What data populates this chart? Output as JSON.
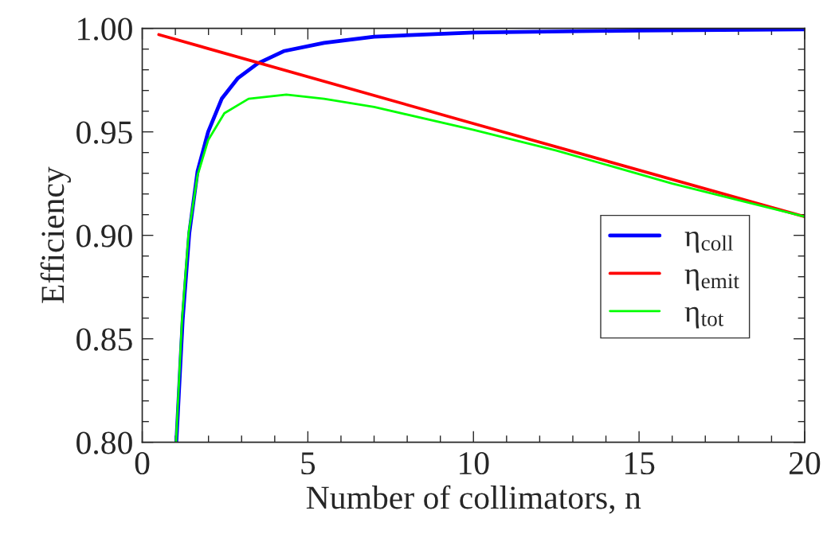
{
  "chart_data": {
    "type": "line",
    "xlabel": "Number of collimators, n",
    "ylabel": "Efficiency",
    "xlim": [
      0,
      20
    ],
    "ylim": [
      0.8,
      1.0
    ],
    "xticks": [
      0,
      {
        "value": 1,
        "label": null
      },
      {
        "value": 2,
        "label": null
      },
      {
        "value": 3,
        "label": null
      },
      {
        "value": 4,
        "label": null
      },
      5,
      {
        "value": 6,
        "label": null
      },
      {
        "value": 7,
        "label": null
      },
      {
        "value": 8,
        "label": null
      },
      {
        "value": 9,
        "label": null
      },
      10,
      {
        "value": 11,
        "label": null
      },
      {
        "value": 12,
        "label": null
      },
      {
        "value": 13,
        "label": null
      },
      {
        "value": 14,
        "label": null
      },
      15,
      {
        "value": 16,
        "label": null
      },
      {
        "value": 17,
        "label": null
      },
      {
        "value": 18,
        "label": null
      },
      {
        "value": 19,
        "label": null
      },
      20
    ],
    "yticks": [
      {
        "value": 0.8,
        "label": "0.80"
      },
      {
        "value": 0.81,
        "label": null
      },
      {
        "value": 0.82,
        "label": null
      },
      {
        "value": 0.83,
        "label": null
      },
      {
        "value": 0.84,
        "label": null
      },
      {
        "value": 0.85,
        "label": "0.85"
      },
      {
        "value": 0.86,
        "label": null
      },
      {
        "value": 0.87,
        "label": null
      },
      {
        "value": 0.88,
        "label": null
      },
      {
        "value": 0.89,
        "label": null
      },
      {
        "value": 0.9,
        "label": "0.90"
      },
      {
        "value": 0.91,
        "label": null
      },
      {
        "value": 0.92,
        "label": null
      },
      {
        "value": 0.93,
        "label": null
      },
      {
        "value": 0.94,
        "label": null
      },
      {
        "value": 0.95,
        "label": "0.95"
      },
      {
        "value": 0.96,
        "label": null
      },
      {
        "value": 0.97,
        "label": null
      },
      {
        "value": 0.98,
        "label": null
      },
      {
        "value": 0.99,
        "label": null
      },
      {
        "value": 1.0,
        "label": "1.00"
      }
    ],
    "grid": false,
    "legend": "right",
    "marker": "none",
    "line_style": "solid",
    "series": [
      {
        "name": "η$_{coll}$",
        "color": "#0000ff",
        "x": [
          1.03,
          1.22,
          1.42,
          1.67,
          1.99,
          2.4,
          2.89,
          3.48,
          4.27,
          5.49,
          7.0,
          10.0,
          15.0,
          20.0
        ],
        "values": [
          0.8,
          0.859,
          0.901,
          0.931,
          0.95,
          0.966,
          0.976,
          0.983,
          0.989,
          0.993,
          0.996,
          0.998,
          0.999,
          0.9995
        ]
      },
      {
        "name": "η$_{emit}$",
        "color": "#ff0000",
        "x": [
          0.5,
          10.0,
          20.0
        ],
        "values": [
          0.997,
          0.954,
          0.909
        ]
      },
      {
        "name": "η$_{tot}$",
        "color": "#00ff00",
        "x": [
          1.02,
          1.2,
          1.4,
          1.67,
          1.99,
          2.48,
          3.21,
          4.35,
          5.49,
          7.0,
          10.0,
          12.5,
          16.0,
          20.0
        ],
        "values": [
          0.8,
          0.859,
          0.901,
          0.929,
          0.946,
          0.959,
          0.966,
          0.968,
          0.966,
          0.962,
          0.951,
          0.941,
          0.925,
          0.909
        ]
      }
    ]
  }
}
